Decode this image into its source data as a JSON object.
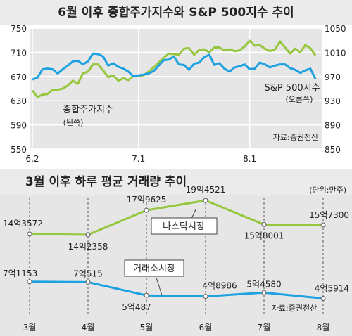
{
  "colors": {
    "blue": "#1ea1e0",
    "green": "#95c63d",
    "grid": "#ffffff",
    "text": "#222222",
    "dash": "#555555"
  },
  "chart_data": [
    {
      "type": "line",
      "title": "6월 이후 종합주가지수와 S&P 500지수 추이",
      "source": "자료:증권전산",
      "x_tick_labels": [
        "6.2",
        "7.1",
        "8.1"
      ],
      "y_left_ticks": [
        "750",
        "710",
        "670",
        "630",
        "590",
        "550"
      ],
      "y_right_ticks": [
        "1050",
        "1010",
        "970",
        "930",
        "890",
        "850"
      ],
      "ylim_left": [
        550,
        750
      ],
      "ylim_right": [
        850,
        1050
      ],
      "grid": true,
      "series": [
        {
          "name": "종합주가지수",
          "sub": "(왼쪽)",
          "axis": "left",
          "color": "#95c63d",
          "values": [
            647,
            636,
            640,
            641,
            648,
            648,
            650,
            655,
            663,
            658,
            675,
            678,
            690,
            690,
            680,
            669,
            672,
            663,
            667,
            664,
            671,
            671,
            672,
            678,
            685,
            693,
            701,
            708,
            707,
            706,
            716,
            717,
            706,
            714,
            715,
            710,
            718,
            718,
            713,
            715,
            712,
            713,
            720,
            729,
            721,
            722,
            716,
            712,
            715,
            728,
            718,
            708,
            716,
            710,
            722,
            717,
            705
          ]
        },
        {
          "name": "S&P 500지수",
          "sub": "(오른쪽)",
          "axis": "right",
          "color": "#1ea1e0",
          "values": [
            965,
            968,
            982,
            983,
            982,
            975,
            982,
            988,
            995,
            996,
            990,
            995,
            1008,
            1007,
            1003,
            988,
            992,
            986,
            983,
            978,
            970,
            972,
            973,
            975,
            979,
            988,
            997,
            998,
            1003,
            990,
            989,
            981,
            991,
            993,
            1002,
            1006,
            989,
            992,
            983,
            978,
            985,
            987,
            990,
            982,
            983,
            993,
            990,
            985,
            988,
            990,
            990,
            984,
            981,
            976,
            980,
            983,
            966
          ]
        }
      ]
    },
    {
      "type": "line",
      "title": "3월 이후 하루 평균 거래량 추이",
      "unit": "(단위:만주)",
      "source": "자료:증권전산",
      "categories": [
        "3월",
        "4월",
        "5월",
        "6월",
        "7월",
        "8월"
      ],
      "grid": true,
      "series": [
        {
          "name": "나스닥시장",
          "color": "#95c63d",
          "values": [
            143572,
            142358,
            179625,
            194521,
            158001,
            157300
          ],
          "labels": [
            "14억3572",
            "14억2358",
            "17억9625",
            "19억4521",
            "15억8001",
            "15억7300"
          ]
        },
        {
          "name": "거래소시장",
          "color": "#1ea1e0",
          "values": [
            71153,
            70515,
            50487,
            48986,
            54580,
            45914
          ],
          "labels": [
            "7억1153",
            "7억515",
            "5억487",
            "4억8986",
            "5억4580",
            "4억5914"
          ]
        }
      ]
    }
  ]
}
